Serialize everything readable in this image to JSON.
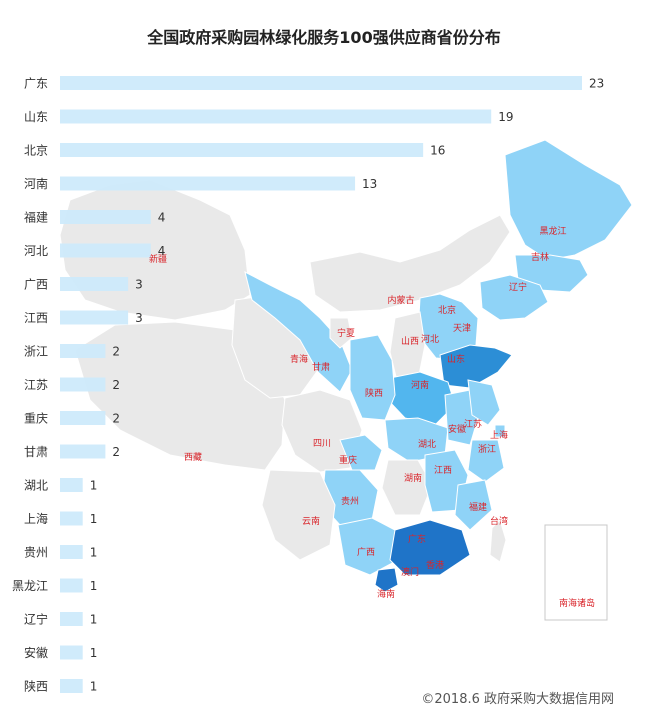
{
  "chart_data": {
    "type": "bar",
    "orientation": "horizontal",
    "title": "全国政府采购园林绿化服务100强供应商省份分布",
    "categories": [
      "广东",
      "山东",
      "北京",
      "河南",
      "福建",
      "河北",
      "广西",
      "江西",
      "浙江",
      "江苏",
      "重庆",
      "甘肃",
      "湖北",
      "上海",
      "贵州",
      "黑龙江",
      "辽宁",
      "安徽",
      "陕西"
    ],
    "values": [
      23,
      19,
      16,
      13,
      4,
      4,
      3,
      3,
      2,
      2,
      2,
      2,
      1,
      1,
      1,
      1,
      1,
      1,
      1
    ],
    "xlim": [
      0,
      23
    ],
    "grid": false,
    "bar_color": "#cce9fb",
    "map_labels": [
      "新疆",
      "西藏",
      "青海",
      "甘肃",
      "宁夏",
      "内蒙古",
      "黑龙江",
      "吉林",
      "辽宁",
      "北京",
      "天津",
      "河北",
      "山西",
      "山东",
      "河南",
      "陕西",
      "四川",
      "重庆",
      "湖北",
      "安徽",
      "江苏",
      "上海",
      "浙江",
      "湖南",
      "江西",
      "福建",
      "台湾",
      "贵州",
      "云南",
      "广西",
      "广东",
      "香港",
      "澳门",
      "海南",
      "南海诸岛"
    ],
    "map_colors": {
      "none": "#e9e9e9",
      "low": "#8fd3f7",
      "mid": "#52b6ee",
      "high": "#2c8ed6",
      "top": "#1f74c8",
      "border": "#ffffff",
      "label": "#d9252b"
    }
  },
  "footer": {
    "credit": "©2018.6 政府采购大数据信用网"
  }
}
